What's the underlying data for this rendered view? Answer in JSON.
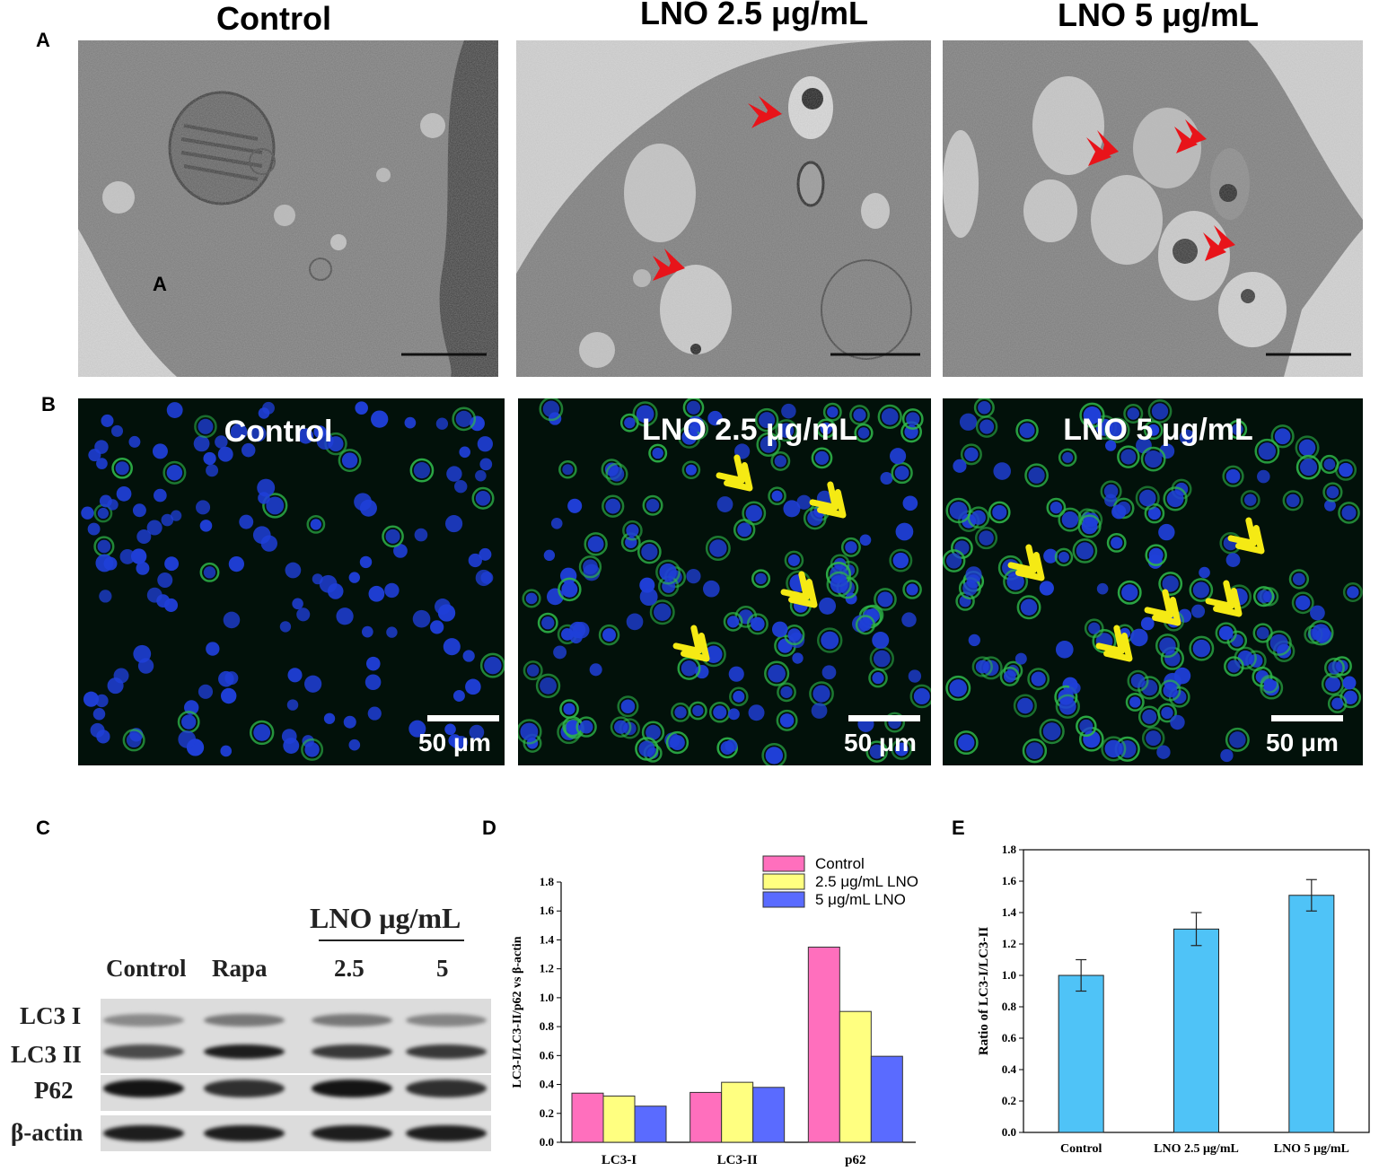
{
  "panels": {
    "a": "A",
    "b": "B",
    "c": "C",
    "d": "D",
    "e": "E"
  },
  "panel_a": {
    "titles": [
      "Control",
      "LNO 2.5 μg/mL",
      "LNO 5 μg/mL"
    ],
    "inset_mark": "A",
    "arrow_color": "#e8141a"
  },
  "panel_b": {
    "titles": [
      "Control",
      "LNO 2.5 μg/mL",
      "LNO 5 μg/mL"
    ],
    "scale_label": "50 μm",
    "arrow_color": "#f5ea14",
    "nucleus_color": "#1f3fd8",
    "autophagy_color": "#2fb84a"
  },
  "panel_c": {
    "header": "LNO μg/mL",
    "lanes": [
      "Control",
      "Rapa",
      "2.5",
      "5"
    ],
    "rows": [
      "LC3 I",
      "LC3 II",
      "P62",
      "β-actin"
    ],
    "band_intensity": {
      "LC3 I": [
        0.35,
        0.45,
        0.45,
        0.38
      ],
      "LC3 II": [
        0.7,
        0.95,
        0.8,
        0.8
      ],
      "P62": [
        1.0,
        0.85,
        1.0,
        0.85
      ],
      "β-actin": [
        0.95,
        0.95,
        0.95,
        0.95
      ]
    }
  },
  "chart_data": [
    {
      "type": "bar",
      "panel": "D",
      "categories": [
        "LC3-I",
        "LC3-II",
        "p62"
      ],
      "series": [
        {
          "name": "Control",
          "color": "#ff6fbd",
          "values": [
            0.34,
            0.345,
            1.35
          ]
        },
        {
          "name": "2.5 μg/mL LNO",
          "color": "#ffff80",
          "values": [
            0.32,
            0.415,
            0.905
          ]
        },
        {
          "name": "5 μg/mL LNO",
          "color": "#5a6bff",
          "values": [
            0.25,
            0.38,
            0.595
          ]
        }
      ],
      "ylabel": "LC3-I/LC3-II/p62 vs β-actin",
      "xlabel": "",
      "ylim": [
        0,
        1.8
      ],
      "yticks": [
        "0.0",
        "0.2",
        "0.4",
        "0.6",
        "0.8",
        "1.0",
        "1.2",
        "1.4",
        "1.6",
        "1.8"
      ],
      "legend": "top-right",
      "grid": false
    },
    {
      "type": "bar",
      "panel": "E",
      "categories": [
        "Control",
        "LNO 2.5 μg/mL",
        "LNO 5 μg/mL"
      ],
      "values": [
        1.0,
        1.295,
        1.51
      ],
      "errors": [
        0.1,
        0.105,
        0.1
      ],
      "color": "#4fc3f7",
      "ylabel": "Ratio of LC3-I/LC3-II",
      "xlabel": "",
      "ylim": [
        0,
        1.8
      ],
      "yticks": [
        "0.0",
        "0.2",
        "0.4",
        "0.6",
        "0.8",
        "1.0",
        "1.2",
        "1.4",
        "1.6",
        "1.8"
      ],
      "grid": false
    }
  ]
}
